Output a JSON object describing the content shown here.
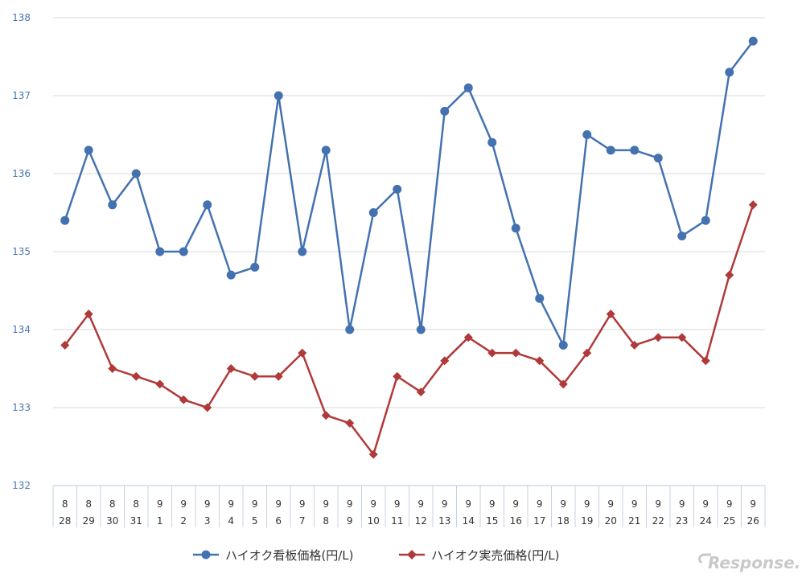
{
  "chart_data": {
    "type": "line",
    "ylim": [
      132,
      138
    ],
    "yticks": [
      132,
      133,
      134,
      135,
      136,
      137,
      138
    ],
    "grid": true,
    "legend_position": "bottom",
    "x_month": [
      "8",
      "8",
      "8",
      "8",
      "9",
      "9",
      "9",
      "9",
      "9",
      "9",
      "9",
      "9",
      "9",
      "9",
      "9",
      "9",
      "9",
      "9",
      "9",
      "9",
      "9",
      "9",
      "9",
      "9",
      "9",
      "9",
      "9",
      "9",
      "9",
      "9"
    ],
    "x_day": [
      "28",
      "29",
      "30",
      "31",
      "1",
      "2",
      "3",
      "4",
      "5",
      "6",
      "7",
      "8",
      "9",
      "10",
      "11",
      "12",
      "13",
      "14",
      "15",
      "16",
      "17",
      "18",
      "19",
      "20",
      "21",
      "22",
      "23",
      "24",
      "25",
      "26"
    ],
    "series": [
      {
        "name": "ハイオク看板価格(円/L)",
        "color": "#4472b0",
        "marker": "circle",
        "values": [
          135.4,
          136.3,
          135.6,
          136.0,
          135.0,
          135.0,
          135.6,
          134.7,
          134.8,
          137.0,
          135.0,
          136.3,
          134.0,
          135.5,
          135.8,
          134.0,
          136.8,
          137.1,
          136.4,
          135.3,
          134.4,
          133.8,
          136.5,
          136.3,
          136.3,
          136.2,
          135.2,
          135.4,
          137.3,
          137.7
        ]
      },
      {
        "name": "ハイオク実売価格(円/L)",
        "color": "#b03a3a",
        "marker": "diamond",
        "values": [
          133.8,
          134.2,
          133.5,
          133.4,
          133.3,
          133.1,
          133.0,
          133.5,
          133.4,
          133.4,
          133.7,
          132.9,
          132.8,
          132.4,
          133.4,
          133.2,
          133.6,
          133.9,
          133.7,
          133.7,
          133.6,
          133.3,
          133.7,
          134.2,
          133.8,
          133.9,
          133.9,
          133.6,
          134.7,
          135.6
        ]
      }
    ]
  },
  "watermark": "Response."
}
